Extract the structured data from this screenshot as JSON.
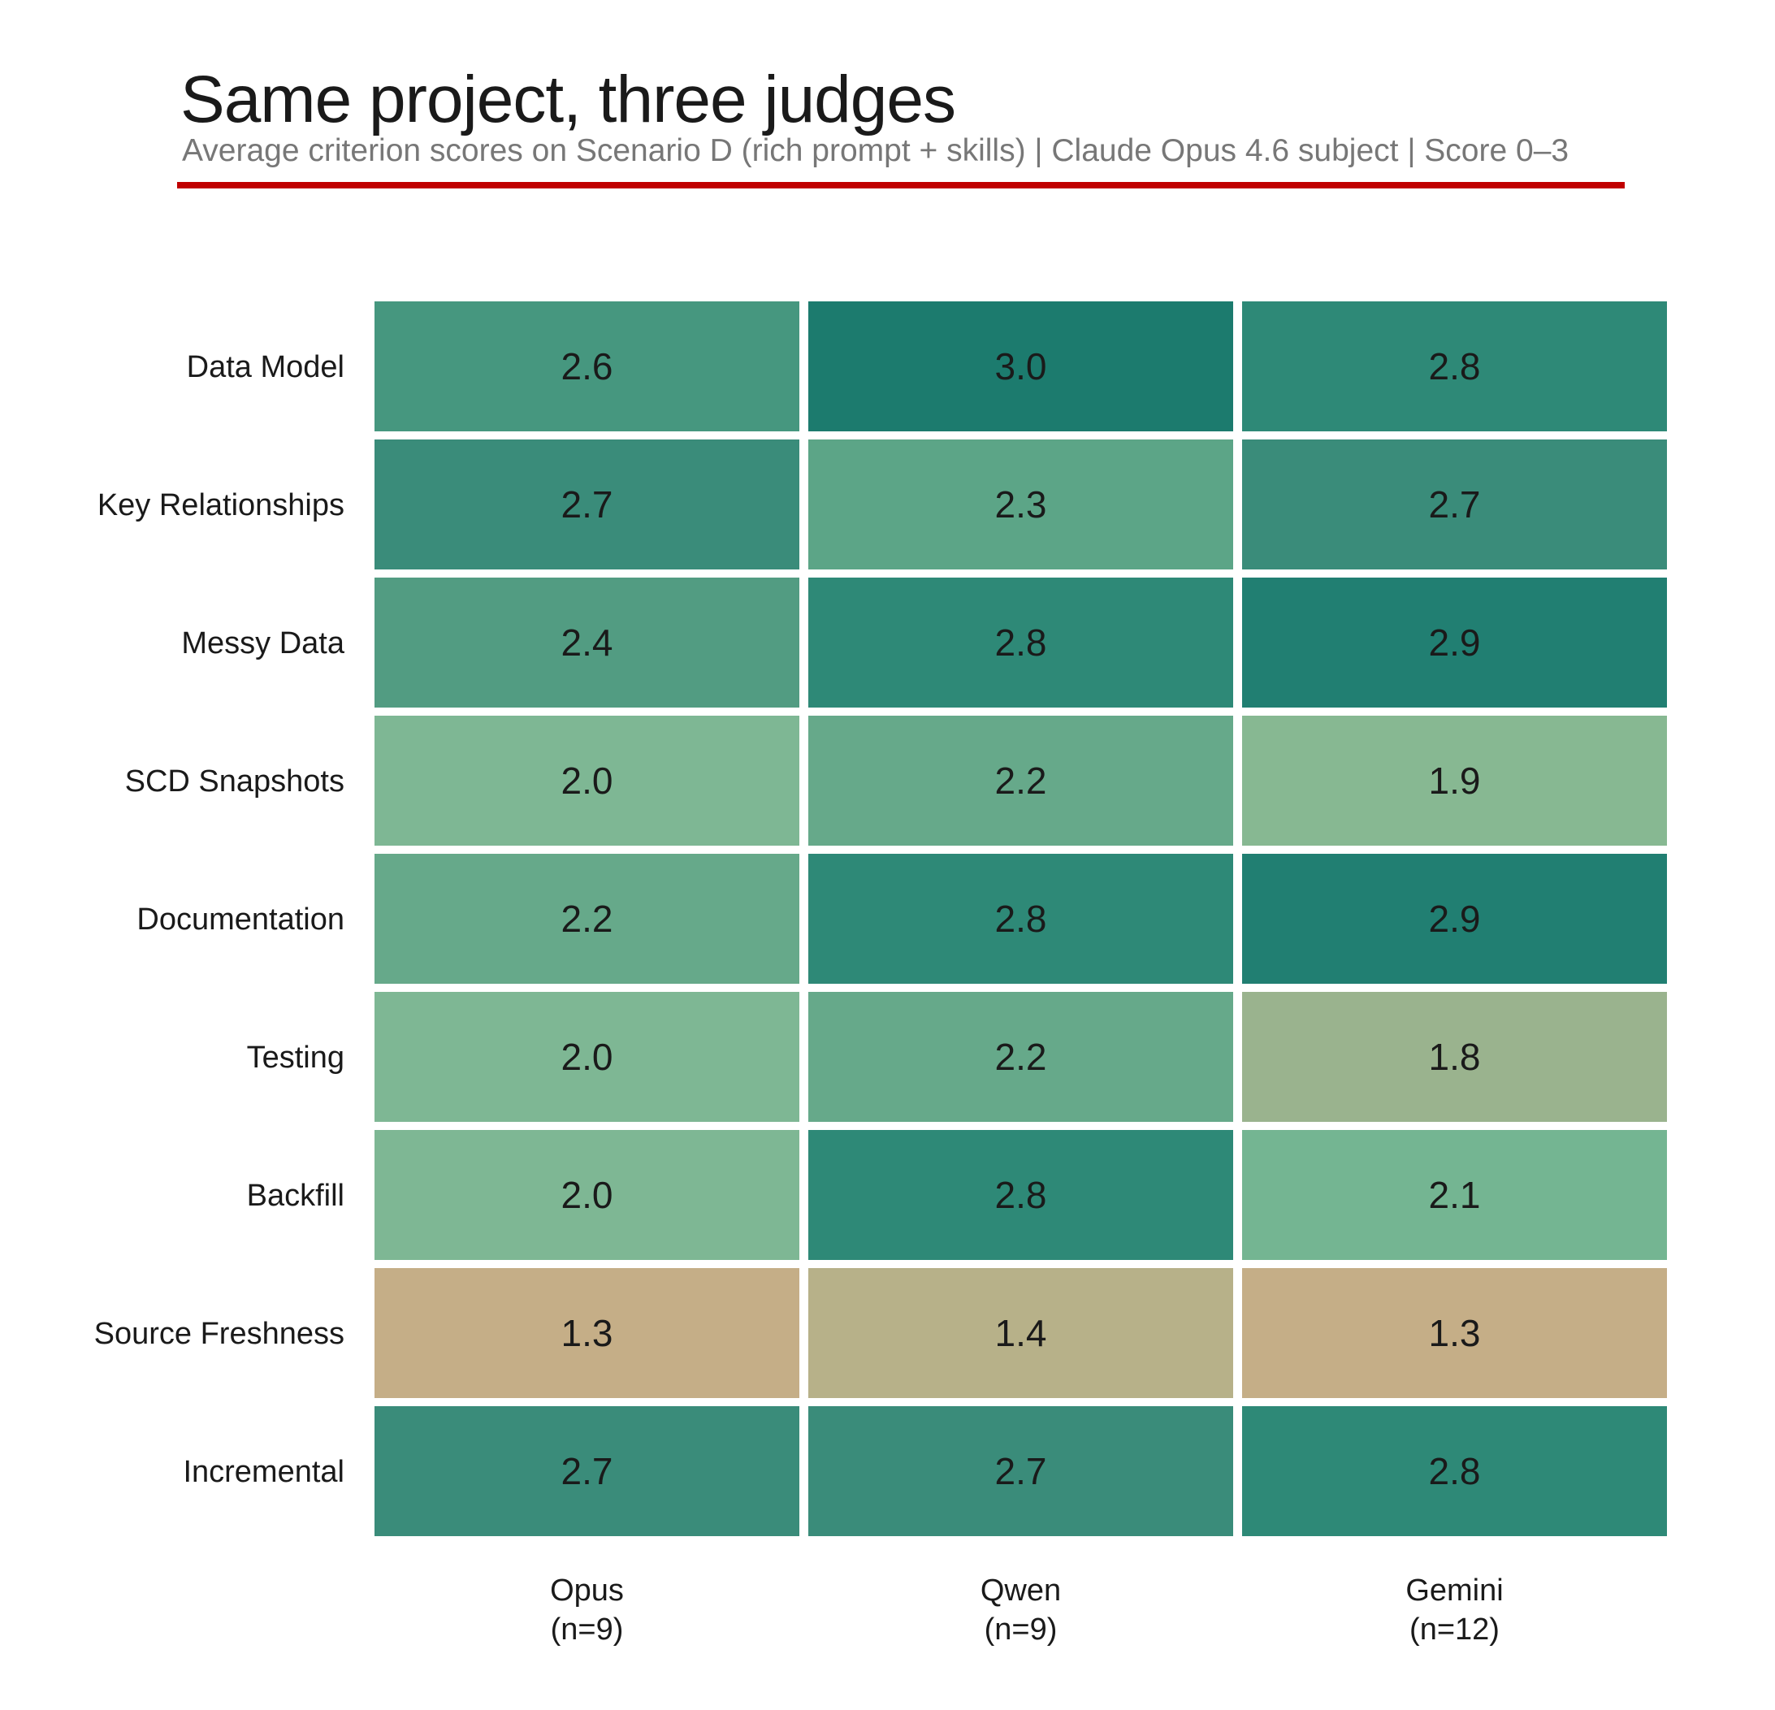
{
  "title": "Same project, three judges",
  "subtitle": "Average criterion scores on Scenario D (rich prompt + skills)  |  Claude Opus 4.6 subject  |  Score 0–3",
  "accent_color": "#c00000",
  "chart_data": {
    "type": "heatmap",
    "title": "Same project, three judges",
    "subtitle": "Average criterion scores on Scenario D (rich prompt + skills)  |  Claude Opus 4.6 subject  |  Score 0–3",
    "rows": [
      "Data Model",
      "Key Relationships",
      "Messy Data",
      "SCD Snapshots",
      "Documentation",
      "Testing",
      "Backfill",
      "Source Freshness",
      "Incremental"
    ],
    "columns": [
      {
        "name": "Opus",
        "n": "(n=9)"
      },
      {
        "name": "Qwen",
        "n": "(n=9)"
      },
      {
        "name": "Gemini",
        "n": "(n=12)"
      }
    ],
    "values": [
      [
        2.6,
        3.0,
        2.8
      ],
      [
        2.7,
        2.3,
        2.7
      ],
      [
        2.4,
        2.8,
        2.9
      ],
      [
        2.0,
        2.2,
        1.9
      ],
      [
        2.2,
        2.8,
        2.9
      ],
      [
        2.0,
        2.2,
        1.8
      ],
      [
        2.0,
        2.8,
        2.1
      ],
      [
        1.3,
        1.4,
        1.3
      ],
      [
        2.7,
        2.7,
        2.8
      ]
    ],
    "value_range": [
      0,
      3
    ],
    "colorscale": [
      [
        1.3,
        "#c5ae87"
      ],
      [
        1.4,
        "#b7b189"
      ],
      [
        1.8,
        "#9ab38e"
      ],
      [
        1.9,
        "#87b892"
      ],
      [
        2.0,
        "#7eb794"
      ],
      [
        2.1,
        "#74b592"
      ],
      [
        2.2,
        "#66a98a"
      ],
      [
        2.3,
        "#5ca587"
      ],
      [
        2.4,
        "#529c82"
      ],
      [
        2.6,
        "#46977f"
      ],
      [
        2.7,
        "#3a8c7a"
      ],
      [
        2.8,
        "#2e8977"
      ],
      [
        2.9,
        "#217f72"
      ],
      [
        3.0,
        "#1c7b6e"
      ]
    ],
    "legend": "none",
    "grid": false
  }
}
